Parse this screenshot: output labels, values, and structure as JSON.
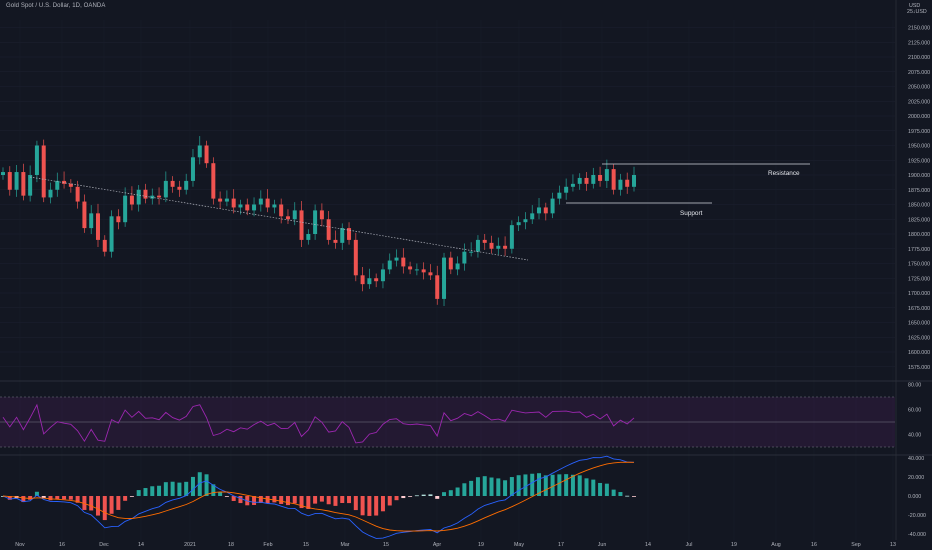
{
  "header": {
    "symbol_title": "Gold Spot / U.S. Dollar, 1D, OANDA",
    "currency": "USD",
    "unit": "25↓USD"
  },
  "colors": {
    "background": "#131722",
    "up": "#26a69a",
    "down": "#ef5350",
    "rsi": "#9c27b0",
    "macd_line": "#2962ff",
    "signal_line": "#ff6d00"
  },
  "annotations": {
    "resistance": "Resistance",
    "support": "Support"
  },
  "chart_data": [
    {
      "type": "candlestick",
      "name": "price",
      "ylim": [
        1550,
        2150
      ],
      "y_ticks": [
        "2150.000",
        "2125.000",
        "2100.000",
        "2075.000",
        "2050.000",
        "2025.000",
        "2000.000",
        "1975.000",
        "1950.000",
        "1925.000",
        "1900.000",
        "1875.000",
        "1850.000",
        "1825.000",
        "1800.000",
        "1775.000",
        "1750.000",
        "1725.000",
        "1700.000",
        "1675.000",
        "1650.000",
        "1625.000",
        "1600.000",
        "1575.000"
      ],
      "x_ticks": [
        "Nov",
        "16",
        "Dec",
        "14",
        "2021",
        "18",
        "Feb",
        "15",
        "Mar",
        "15",
        "Apr",
        "19",
        "May",
        "17",
        "Jun",
        "14",
        "Jul",
        "19",
        "Aug",
        "16",
        "Sep",
        "13"
      ],
      "candles_approx": [
        1905,
        1875,
        1905,
        1865,
        1900,
        1950,
        1862,
        1875,
        1890,
        1885,
        1880,
        1855,
        1810,
        1835,
        1790,
        1770,
        1830,
        1820,
        1865,
        1850,
        1875,
        1860,
        1865,
        1862,
        1890,
        1880,
        1875,
        1890,
        1930,
        1950,
        1920,
        1860,
        1855,
        1860,
        1845,
        1850,
        1840,
        1850,
        1860,
        1845,
        1850,
        1830,
        1825,
        1840,
        1790,
        1800,
        1840,
        1825,
        1790,
        1785,
        1810,
        1790,
        1730,
        1715,
        1725,
        1720,
        1740,
        1755,
        1760,
        1745,
        1740,
        1740,
        1735,
        1730,
        1690,
        1760,
        1740,
        1750,
        1770,
        1770,
        1790,
        1785,
        1775,
        1780,
        1775,
        1815,
        1820,
        1825,
        1835,
        1845,
        1835,
        1860,
        1870,
        1880,
        1885,
        1895,
        1885,
        1900,
        1890,
        1910,
        1875,
        1892,
        1880,
        1900
      ],
      "annotations": [
        "Resistance",
        "Support"
      ]
    },
    {
      "type": "line",
      "name": "RSI",
      "ylim": [
        35,
        85
      ],
      "y_ticks": [
        "80.00",
        "60.00",
        "40.00"
      ],
      "bands": [
        70,
        50,
        30
      ]
    },
    {
      "type": "bar",
      "name": "MACD",
      "ylim": [
        -45,
        45
      ],
      "y_ticks": [
        "40.000",
        "20.000",
        "0.000",
        "-20.000",
        "-40.000"
      ]
    }
  ]
}
